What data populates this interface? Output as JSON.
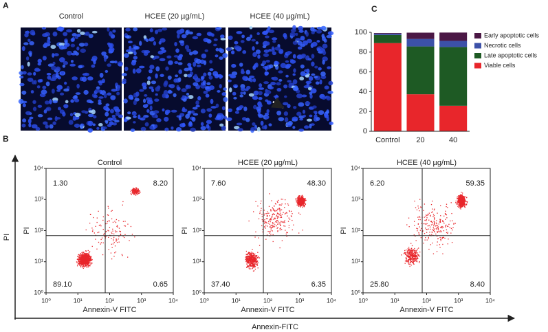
{
  "panel_labels": [
    "A",
    "B",
    "C"
  ],
  "microscopy": {
    "titles": [
      "Control",
      "HCEE (20 µg/mL)",
      "HCEE (40 µg/mL)"
    ]
  },
  "outer_axes": {
    "y_label": "PI",
    "x_label": "Annexin-FITC"
  },
  "chart_data": [
    {
      "type": "bar",
      "stacked": true,
      "categories": [
        "Control",
        "20",
        "40"
      ],
      "series": [
        {
          "name": "Viable cells",
          "color": "#e8262b",
          "values": [
            89.1,
            37.4,
            25.8
          ]
        },
        {
          "name": "Late apoptotic cells",
          "color": "#1e5a24",
          "values": [
            8.2,
            48.3,
            59.35
          ]
        },
        {
          "name": "Necrotic cells",
          "color": "#3c51a8",
          "values": [
            1.3,
            7.6,
            6.2
          ]
        },
        {
          "name": "Early apoptotic cells",
          "color": "#4b1845",
          "values": [
            0.65,
            6.35,
            8.4
          ]
        }
      ],
      "ylim": [
        0,
        100
      ],
      "yticks": [
        0,
        20,
        40,
        60,
        80,
        100
      ],
      "legend": "right"
    },
    {
      "type": "scatter",
      "title": "Control",
      "xlabel": "Annexin-V FITC",
      "ylabel": "PI",
      "color": "#e8262b",
      "log": true,
      "xlim": [
        1,
        10000
      ],
      "ylim": [
        1,
        10000
      ],
      "xticks": [
        {
          "value": 1,
          "label": "10⁰"
        },
        {
          "value": 10,
          "label": "10¹"
        },
        {
          "value": 100,
          "label": "10²"
        },
        {
          "value": 1000,
          "label": "10³"
        },
        {
          "value": 10000,
          "label": "10⁴"
        }
      ],
      "yticks": [
        {
          "value": 1,
          "label": "10⁰"
        },
        {
          "value": 10,
          "label": "10¹"
        },
        {
          "value": 100,
          "label": "10²"
        },
        {
          "value": 1000,
          "label": "10³"
        },
        {
          "value": 10000,
          "label": "10⁴"
        }
      ],
      "quadrants": {
        "upper_left": "1.30",
        "upper_right": "8.20",
        "lower_left": "89.10",
        "lower_right": "0.65"
      }
    },
    {
      "type": "scatter",
      "title": "HCEE (20 µg/mL)",
      "xlabel": "Annexin-V FITC",
      "ylabel": "PI",
      "color": "#e8262b",
      "log": true,
      "xlim": [
        1,
        10000
      ],
      "ylim": [
        1,
        10000
      ],
      "xticks": [
        {
          "value": 1,
          "label": "10⁰"
        },
        {
          "value": 10,
          "label": "10¹"
        },
        {
          "value": 100,
          "label": "10²"
        },
        {
          "value": 1000,
          "label": "10³"
        },
        {
          "value": 10000,
          "label": "10⁴"
        }
      ],
      "yticks": [
        {
          "value": 1,
          "label": "10⁰"
        },
        {
          "value": 10,
          "label": "10¹"
        },
        {
          "value": 100,
          "label": "10²"
        },
        {
          "value": 1000,
          "label": "10³"
        },
        {
          "value": 10000,
          "label": "10⁴"
        }
      ],
      "quadrants": {
        "upper_left": "7.60",
        "upper_right": "48.30",
        "lower_left": "37.40",
        "lower_right": "6.35"
      }
    },
    {
      "type": "scatter",
      "title": "HCEE (40 µg/mL)",
      "xlabel": "Annexin-V FITC",
      "ylabel": "PI",
      "color": "#e8262b",
      "log": true,
      "xlim": [
        1,
        10000
      ],
      "ylim": [
        1,
        10000
      ],
      "xticks": [
        {
          "value": 1,
          "label": "10⁰"
        },
        {
          "value": 10,
          "label": "10¹"
        },
        {
          "value": 100,
          "label": "10²"
        },
        {
          "value": 1000,
          "label": "10³"
        },
        {
          "value": 10000,
          "label": "10⁴"
        }
      ],
      "yticks": [
        {
          "value": 1,
          "label": "10⁰"
        },
        {
          "value": 10,
          "label": "10¹"
        },
        {
          "value": 100,
          "label": "10²"
        },
        {
          "value": 1000,
          "label": "10³"
        },
        {
          "value": 10000,
          "label": "10⁴"
        }
      ],
      "quadrants": {
        "upper_left": "6.20",
        "upper_right": "59.35",
        "lower_left": "25.80",
        "lower_right": "8.40"
      }
    }
  ]
}
